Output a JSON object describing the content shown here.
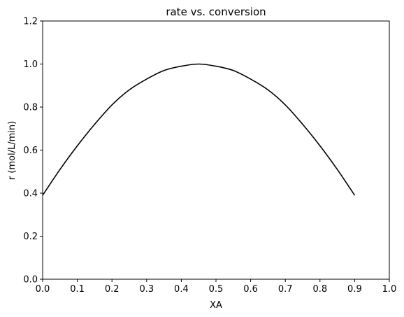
{
  "chart_data": {
    "type": "line",
    "title": "rate vs. conversion",
    "xlabel": "XA",
    "ylabel": "r (mol/L/min)",
    "xlim": [
      0.0,
      1.0
    ],
    "ylim": [
      0.0,
      1.2
    ],
    "grid": false,
    "xticks": [
      "0.0",
      "0.1",
      "0.2",
      "0.3",
      "0.4",
      "0.5",
      "0.6",
      "0.7",
      "0.8",
      "0.9",
      "1.0"
    ],
    "yticks": [
      "0.0",
      "0.2",
      "0.4",
      "0.6",
      "0.8",
      "1.0",
      "1.2"
    ],
    "line_color": "#000000",
    "series": [
      {
        "x": [
          0.0,
          0.05,
          0.1,
          0.15,
          0.2,
          0.25,
          0.3,
          0.35,
          0.4,
          0.45,
          0.5,
          0.55,
          0.6,
          0.65,
          0.7,
          0.75,
          0.8,
          0.85,
          0.9
        ],
        "values": [
          0.39,
          0.51,
          0.62,
          0.72,
          0.81,
          0.88,
          0.93,
          0.97,
          0.99,
          1.0,
          0.99,
          0.97,
          0.93,
          0.88,
          0.81,
          0.72,
          0.62,
          0.51,
          0.39
        ]
      }
    ]
  }
}
